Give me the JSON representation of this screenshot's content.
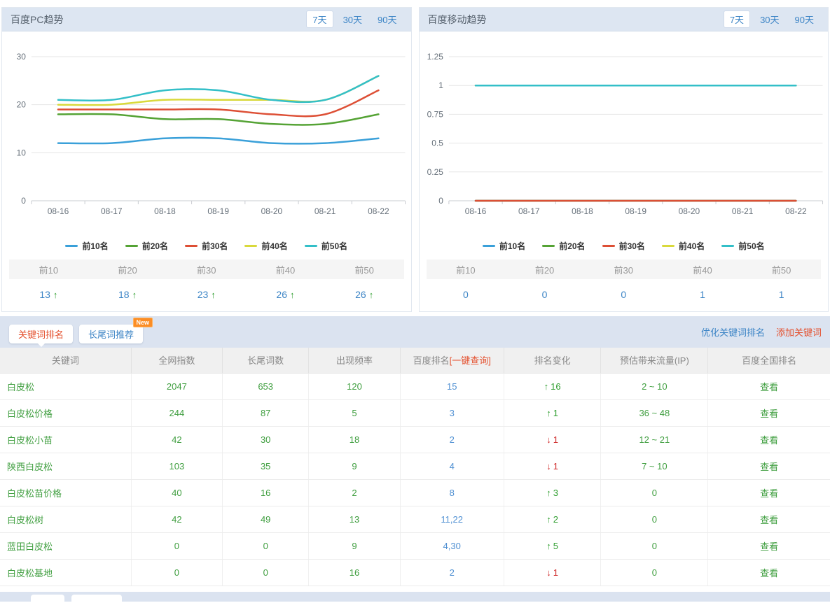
{
  "pc_panel": {
    "title": "百度PC趋势",
    "range_tabs": [
      "7天",
      "30天",
      "90天"
    ],
    "active_tab": "7天",
    "summary": {
      "headers": [
        "前10",
        "前20",
        "前30",
        "前40",
        "前50"
      ],
      "values": [
        {
          "value": "13",
          "trend": "up"
        },
        {
          "value": "18",
          "trend": "up"
        },
        {
          "value": "23",
          "trend": "up"
        },
        {
          "value": "26",
          "trend": "up"
        },
        {
          "value": "26",
          "trend": "up"
        }
      ]
    }
  },
  "mobile_panel": {
    "title": "百度移动趋势",
    "range_tabs": [
      "7天",
      "30天",
      "90天"
    ],
    "active_tab": "7天",
    "summary": {
      "headers": [
        "前10",
        "前20",
        "前30",
        "前40",
        "前50"
      ],
      "values": [
        {
          "value": "0",
          "trend": null
        },
        {
          "value": "0",
          "trend": null
        },
        {
          "value": "0",
          "trend": null
        },
        {
          "value": "1",
          "trend": null
        },
        {
          "value": "1",
          "trend": null
        }
      ]
    }
  },
  "chart_data": [
    {
      "type": "line",
      "title": "百度PC趋势",
      "x": [
        "08-16",
        "08-17",
        "08-18",
        "08-19",
        "08-20",
        "08-21",
        "08-22"
      ],
      "series": [
        {
          "name": "前10名",
          "color": "#3aa0d9",
          "values": [
            12,
            12,
            13,
            13,
            12,
            12,
            13
          ]
        },
        {
          "name": "前20名",
          "color": "#55a335",
          "values": [
            18,
            18,
            17,
            17,
            16,
            16,
            18
          ]
        },
        {
          "name": "前30名",
          "color": "#dd4f35",
          "values": [
            19,
            19,
            19,
            19,
            18,
            18,
            23
          ]
        },
        {
          "name": "前40名",
          "color": "#d9d93c",
          "values": [
            20,
            20,
            21,
            21,
            21,
            21,
            26
          ]
        },
        {
          "name": "前50名",
          "color": "#33bfc8",
          "values": [
            21,
            21,
            23,
            23,
            21,
            21,
            26
          ]
        }
      ],
      "yticks": [
        0,
        10,
        20,
        30
      ],
      "ylim": [
        0,
        33
      ],
      "grid": true,
      "legend_position": "bottom"
    },
    {
      "type": "line",
      "title": "百度移动趋势",
      "x": [
        "08-16",
        "08-17",
        "08-18",
        "08-19",
        "08-20",
        "08-21",
        "08-22"
      ],
      "series": [
        {
          "name": "前10名",
          "color": "#3aa0d9",
          "values": [
            0,
            0,
            0,
            0,
            0,
            0,
            0
          ]
        },
        {
          "name": "前20名",
          "color": "#55a335",
          "values": [
            0,
            0,
            0,
            0,
            0,
            0,
            0
          ]
        },
        {
          "name": "前30名",
          "color": "#dd4f35",
          "values": [
            0,
            0,
            0,
            0,
            0,
            0,
            0
          ]
        },
        {
          "name": "前40名",
          "color": "#d9d93c",
          "values": [
            1,
            1,
            1,
            1,
            1,
            1,
            1
          ]
        },
        {
          "name": "前50名",
          "color": "#33bfc8",
          "values": [
            1,
            1,
            1,
            1,
            1,
            1,
            1
          ]
        }
      ],
      "yticks": [
        0,
        0.25,
        0.5,
        0.75,
        1,
        1.25
      ],
      "ylim": [
        0,
        1.375
      ],
      "grid": true,
      "legend_position": "bottom"
    }
  ],
  "keyword_section": {
    "tabs": [
      {
        "label": "关键词排名",
        "active": true,
        "badge": null
      },
      {
        "label": "长尾词推荐",
        "active": false,
        "badge": "New"
      }
    ],
    "links": [
      {
        "label": "优化关键词排名"
      },
      {
        "label": "添加关键词"
      }
    ]
  },
  "table": {
    "headers": [
      "关键词",
      "全网指数",
      "长尾词数",
      "出现频率",
      "百度排名",
      "排名变化",
      "预估带来流量(IP)",
      "百度全国排名"
    ],
    "rank_header_suffix": "[一键查询]",
    "view_label": "查看",
    "rows": [
      {
        "keyword": "白皮松",
        "index": "2047",
        "longtail": "653",
        "frequency": "120",
        "rank": "15",
        "change": "16",
        "trend": "up",
        "traffic": "2 ~ 10"
      },
      {
        "keyword": "白皮松价格",
        "index": "244",
        "longtail": "87",
        "frequency": "5",
        "rank": "3",
        "change": "1",
        "trend": "up",
        "traffic": "36 ~ 48"
      },
      {
        "keyword": "白皮松小苗",
        "index": "42",
        "longtail": "30",
        "frequency": "18",
        "rank": "2",
        "change": "1",
        "trend": "down",
        "traffic": "12 ~ 21"
      },
      {
        "keyword": "陕西白皮松",
        "index": "103",
        "longtail": "35",
        "frequency": "9",
        "rank": "4",
        "change": "1",
        "trend": "down",
        "traffic": "7 ~ 10"
      },
      {
        "keyword": "白皮松苗价格",
        "index": "40",
        "longtail": "16",
        "frequency": "2",
        "rank": "8",
        "change": "3",
        "trend": "up",
        "traffic": "0"
      },
      {
        "keyword": "白皮松树",
        "index": "42",
        "longtail": "49",
        "frequency": "13",
        "rank": "11,22",
        "change": "2",
        "trend": "up",
        "traffic": "0"
      },
      {
        "keyword": "蓝田白皮松",
        "index": "0",
        "longtail": "0",
        "frequency": "9",
        "rank": "4,30",
        "change": "5",
        "trend": "up",
        "traffic": "0"
      },
      {
        "keyword": "白皮松基地",
        "index": "0",
        "longtail": "0",
        "frequency": "16",
        "rank": "2",
        "change": "1",
        "trend": "down",
        "traffic": "0"
      }
    ]
  },
  "icons": {
    "up_arrow": "↑",
    "down_arrow": "↓"
  },
  "colors": {
    "accent_blue": "#3d85c6",
    "accent_orange": "#e4502e",
    "green": "#3f9e3f",
    "up_green": "#2f9e2f",
    "down_red": "#cf2a2a",
    "panel_header_bg": "#dde6f2",
    "tab_bar_bg": "#dbe3f0",
    "badge_orange": "#fb8d25"
  }
}
